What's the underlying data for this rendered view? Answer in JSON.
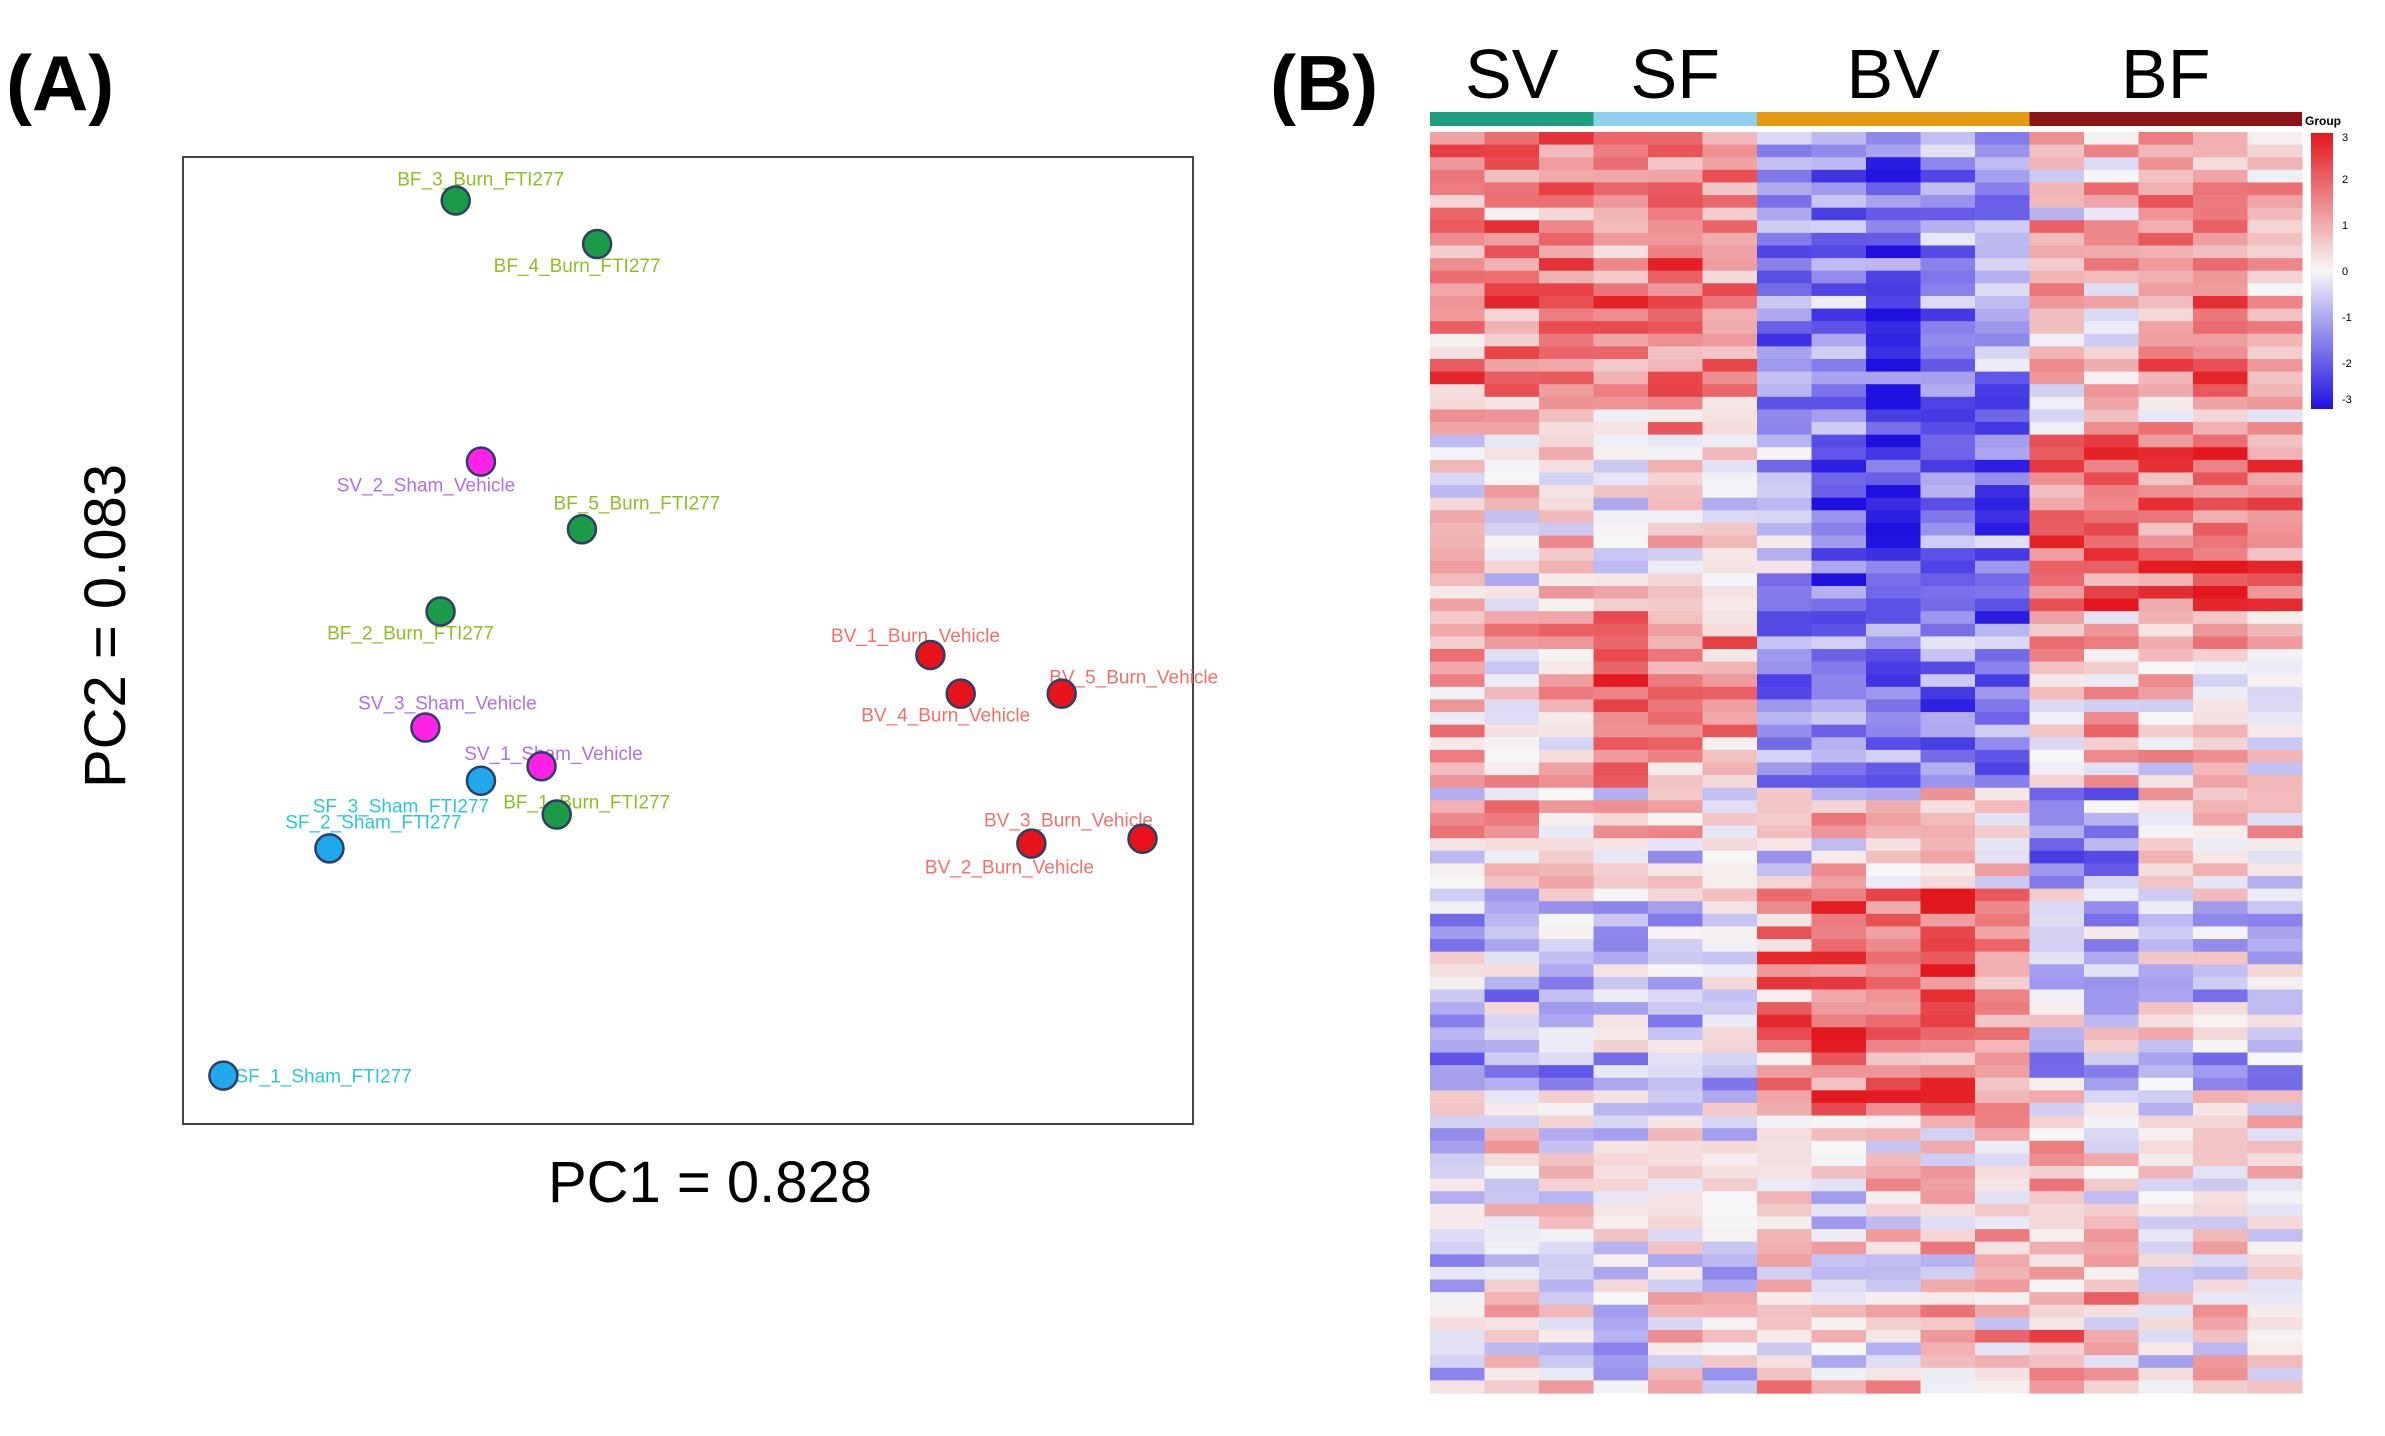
{
  "panels": {
    "a_label": "(A)",
    "b_label": "(B)"
  },
  "chart_data": [
    {
      "type": "scatter",
      "title": "",
      "xlabel": "PC1 = 0.828",
      "ylabel": "PC2 = 0.083",
      "xlim": [
        -1.0,
        1.0
      ],
      "ylim": [
        -1.0,
        1.0
      ],
      "grid": false,
      "groups": [
        {
          "name": "Sham_Vehicle",
          "fill": "#ff22e6",
          "label_color": "#b070ea"
        },
        {
          "name": "Sham_FTI277",
          "fill": "#1fa8ec",
          "label_color": "#2bc9d6"
        },
        {
          "name": "Burn_Vehicle",
          "fill": "#e8121a",
          "label_color": "#f2706a"
        },
        {
          "name": "Burn_FTI277",
          "fill": "#1b9a48",
          "label_color": "#8cc022"
        }
      ],
      "points": [
        {
          "label": "BF_3_Burn_FTI277",
          "group": "Burn_FTI277",
          "x": -0.46,
          "y": 0.91
        },
        {
          "label": "BF_4_Burn_FTI277",
          "group": "Burn_FTI277",
          "x": -0.18,
          "y": 0.82
        },
        {
          "label": "SV_2_Sham_Vehicle",
          "group": "Sham_Vehicle",
          "x": -0.41,
          "y": 0.37
        },
        {
          "label": "BF_5_Burn_FTI277",
          "group": "Burn_FTI277",
          "x": -0.21,
          "y": 0.23
        },
        {
          "label": "BF_2_Burn_FTI277",
          "group": "Burn_FTI277",
          "x": -0.49,
          "y": 0.06
        },
        {
          "label": "SV_3_Sham_Vehicle",
          "group": "Sham_Vehicle",
          "x": -0.52,
          "y": -0.18
        },
        {
          "label": "SV_1_Sham_Vehicle",
          "group": "Sham_Vehicle",
          "x": -0.29,
          "y": -0.26
        },
        {
          "label": "SF_3_Sham_FTI277",
          "group": "Sham_FTI277",
          "x": -0.41,
          "y": -0.29
        },
        {
          "label": "BF_1_Burn_FTI277",
          "group": "Burn_FTI277",
          "x": -0.26,
          "y": -0.36
        },
        {
          "label": "SF_2_Sham_FTI277",
          "group": "Sham_FTI277",
          "x": -0.71,
          "y": -0.43
        },
        {
          "label": "SF_1_Sham_FTI277",
          "group": "Sham_FTI277",
          "x": -0.92,
          "y": -0.9
        },
        {
          "label": "BV_1_Burn_Vehicle",
          "group": "Burn_Vehicle",
          "x": 0.48,
          "y": -0.03
        },
        {
          "label": "BV_4_Burn_Vehicle",
          "group": "Burn_Vehicle",
          "x": 0.54,
          "y": -0.11
        },
        {
          "label": "BV_5_Burn_Vehicle",
          "group": "Burn_Vehicle",
          "x": 0.74,
          "y": -0.11
        },
        {
          "label": "BV_3_Burn_Vehicle",
          "group": "Burn_Vehicle",
          "x": 0.9,
          "y": -0.41
        },
        {
          "label": "BV_2_Burn_Vehicle",
          "group": "Burn_Vehicle",
          "x": 0.68,
          "y": -0.42
        }
      ]
    },
    {
      "type": "heatmap",
      "title": "",
      "groups": [
        {
          "label": "SV",
          "n_cols": 3,
          "color": "#1e9e7c"
        },
        {
          "label": "SF",
          "n_cols": 3,
          "color": "#8fd0ee"
        },
        {
          "label": "BV",
          "n_cols": 5,
          "color": "#e19a12"
        },
        {
          "label": "BF",
          "n_cols": 5,
          "color": "#8c1414"
        }
      ],
      "n_rows": 100,
      "n_cols": 16,
      "color_range": [
        -3,
        3
      ],
      "colors": {
        "low": "#1f10e0",
        "mid": "#f7f7f7",
        "high": "#e3181e"
      },
      "legend": {
        "title": "Group",
        "ticks": [
          "3",
          "2",
          "1",
          "0",
          "-1",
          "-2",
          "-3"
        ]
      },
      "row_blocks": [
        {
          "start": 0,
          "end": 24,
          "means": [
            1.4,
            1.4,
            1.4,
            1.4,
            1.4,
            1.4,
            -1.4,
            -1.4,
            -2.3,
            -1.4,
            -1.4,
            0.6,
            0.6,
            1.3,
            1.4,
            0.6
          ]
        },
        {
          "start": 24,
          "end": 38,
          "means": [
            0.3,
            0.3,
            0.3,
            0.1,
            0.1,
            0.1,
            -1.0,
            -2.1,
            -2.3,
            -1.8,
            -1.8,
            1.9,
            1.9,
            1.7,
            2.1,
            1.7
          ]
        },
        {
          "start": 38,
          "end": 52,
          "means": [
            0.7,
            0.5,
            0.9,
            2.1,
            1.5,
            1.0,
            -1.6,
            -1.6,
            -1.6,
            -1.6,
            -1.6,
            0.6,
            0.7,
            0.5,
            0.5,
            0.4
          ]
        },
        {
          "start": 52,
          "end": 60,
          "means": [
            0.3,
            0.6,
            0.3,
            0.3,
            0.1,
            0.2,
            0.2,
            0.5,
            0.3,
            0.8,
            0.2,
            -1.4,
            -1.4,
            0.6,
            0.3,
            0.1
          ]
        },
        {
          "start": 60,
          "end": 78,
          "means": [
            -0.6,
            -0.6,
            -0.6,
            -0.7,
            -0.7,
            -0.6,
            1.6,
            2.0,
            1.9,
            2.1,
            1.5,
            -0.3,
            -0.4,
            -0.3,
            -0.4,
            -0.5
          ]
        },
        {
          "start": 78,
          "end": 100,
          "means": [
            -0.4,
            0.3,
            0.1,
            -0.3,
            0.0,
            -0.3,
            0.7,
            0.1,
            0.5,
            0.6,
            0.5,
            1.1,
            0.6,
            0.0,
            0.4,
            0.1
          ]
        }
      ]
    }
  ]
}
